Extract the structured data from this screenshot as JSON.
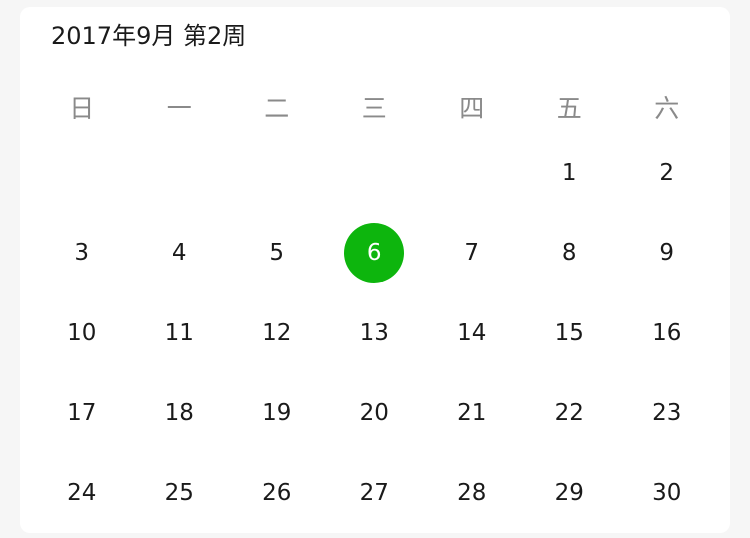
{
  "calendar": {
    "title": "2017年9月 第2周",
    "weekdays": [
      "日",
      "一",
      "二",
      "三",
      "四",
      "五",
      "六"
    ],
    "leading_blanks": 5,
    "days": [
      "1",
      "2",
      "3",
      "4",
      "5",
      "6",
      "7",
      "8",
      "9",
      "10",
      "11",
      "12",
      "13",
      "14",
      "15",
      "16",
      "17",
      "18",
      "19",
      "20",
      "21",
      "22",
      "23",
      "24",
      "25",
      "26",
      "27",
      "28",
      "29",
      "30"
    ],
    "selected_day": "6",
    "accent_color": "#0db50d"
  }
}
